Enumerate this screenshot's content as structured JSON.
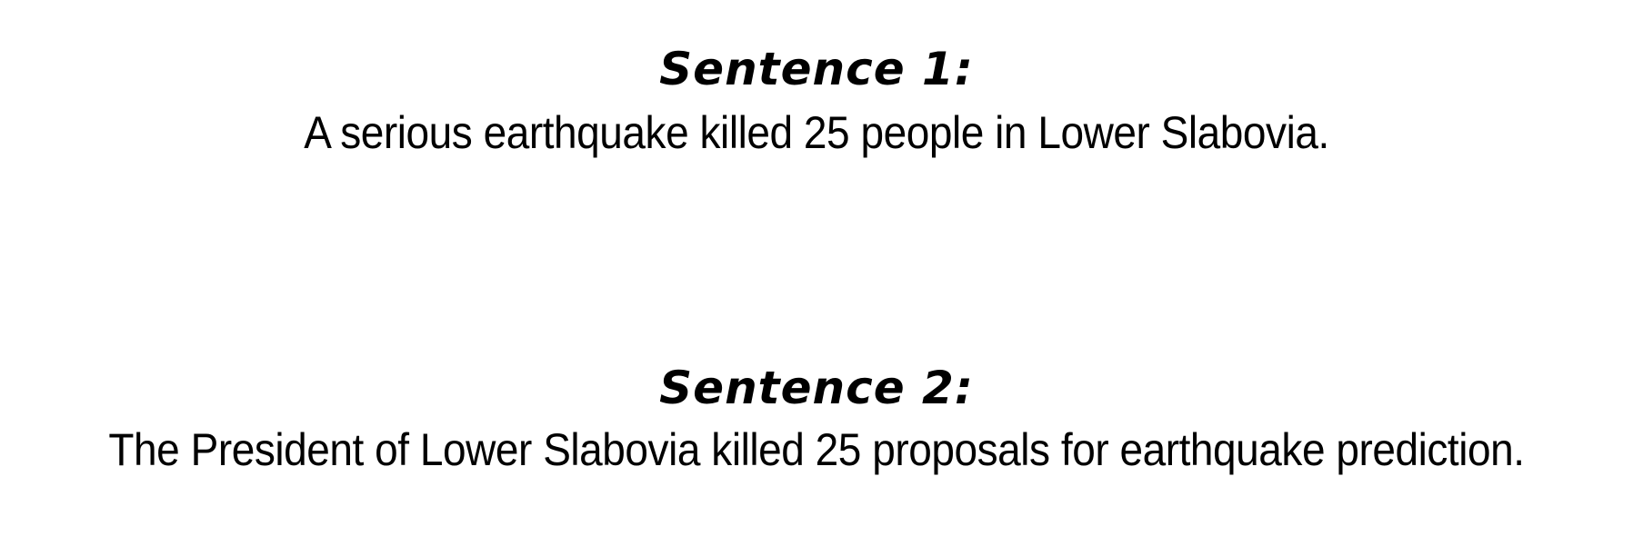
{
  "sentence1": {
    "heading": "Sentence 1:",
    "text": "A serious earthquake killed 25 people in Lower Slabovia."
  },
  "sentence2": {
    "heading": "Sentence 2:",
    "text": "The President of Lower Slabovia killed 25 proposals for earthquake prediction."
  }
}
